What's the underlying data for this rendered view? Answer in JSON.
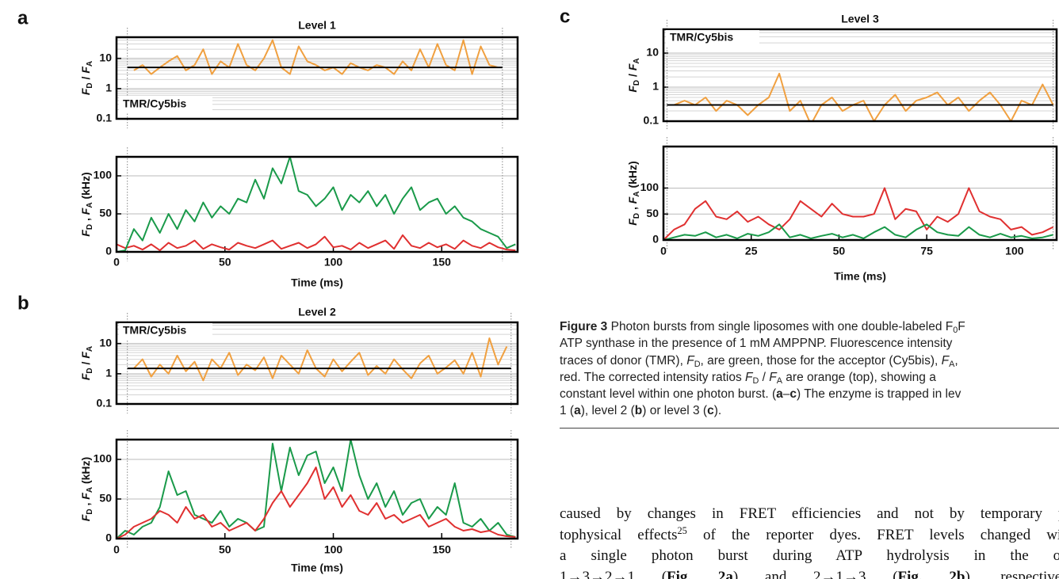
{
  "chart_data": [
    {
      "type": "line",
      "panel": "a",
      "title": "Level 1",
      "log_y": true,
      "xlim": [
        0,
        185
      ],
      "ylim": [
        0.1,
        50
      ],
      "yticks": [
        10,
        1,
        0.1
      ],
      "minor_grid": [
        0.2,
        0.3,
        0.4,
        0.5,
        0.6,
        0.7,
        0.8,
        0.9,
        2,
        3,
        4,
        5,
        6,
        7,
        8,
        9,
        20,
        30,
        40
      ],
      "ylabel": [
        "F",
        "D",
        " / ",
        "F",
        "A"
      ],
      "annotation": "TMR/Cy5bis",
      "annotation_corner": "bottom-left",
      "burst_limits": [
        5,
        178
      ],
      "level": 5,
      "grid": true,
      "x": [
        0,
        4,
        8,
        12,
        16,
        20,
        24,
        28,
        32,
        36,
        40,
        44,
        48,
        52,
        56,
        60,
        64,
        68,
        72,
        76,
        80,
        84,
        88,
        92,
        96,
        100,
        104,
        108,
        112,
        116,
        120,
        124,
        128,
        132,
        136,
        140,
        144,
        148,
        152,
        156,
        160,
        164,
        168,
        172,
        176,
        180,
        184
      ],
      "series": [
        {
          "color": "#f0a040",
          "values": [
            null,
            null,
            4,
            6,
            3,
            5,
            8,
            12,
            4,
            6,
            20,
            3,
            8,
            5,
            30,
            6,
            4,
            10,
            40,
            5,
            3,
            25,
            8,
            6,
            4,
            5,
            3,
            7,
            5,
            4,
            6,
            5,
            3,
            8,
            4,
            20,
            5,
            30,
            6,
            4,
            40,
            3,
            25,
            6,
            5,
            null,
            null
          ]
        }
      ]
    },
    {
      "type": "line",
      "log_y": false,
      "xlim": [
        0,
        185
      ],
      "ylim": [
        0,
        125
      ],
      "yticks": [
        0,
        50,
        100
      ],
      "xticks": [
        0,
        50,
        100,
        150
      ],
      "xlabel": "Time (ms)",
      "ylabel": [
        "F",
        "D",
        " , ",
        "F",
        "A",
        " (kHz)"
      ],
      "burst_limits": [
        5,
        178
      ],
      "grid": true,
      "x": [
        0,
        4,
        8,
        12,
        16,
        20,
        24,
        28,
        32,
        36,
        40,
        44,
        48,
        52,
        56,
        60,
        64,
        68,
        72,
        76,
        80,
        84,
        88,
        92,
        96,
        100,
        104,
        108,
        112,
        116,
        120,
        124,
        128,
        132,
        136,
        140,
        144,
        148,
        152,
        156,
        160,
        164,
        168,
        172,
        176,
        180,
        184
      ],
      "series": [
        {
          "color": "#e03030",
          "values": [
            10,
            5,
            8,
            3,
            10,
            2,
            12,
            5,
            8,
            15,
            4,
            10,
            6,
            3,
            12,
            8,
            5,
            10,
            15,
            4,
            8,
            12,
            5,
            10,
            20,
            6,
            8,
            3,
            12,
            5,
            10,
            15,
            4,
            22,
            8,
            5,
            12,
            6,
            10,
            4,
            15,
            8,
            5,
            12,
            6,
            3,
            2
          ]
        },
        {
          "color": "#1a9a4a",
          "values": [
            0,
            2,
            30,
            15,
            45,
            25,
            50,
            30,
            55,
            40,
            65,
            45,
            60,
            50,
            70,
            65,
            95,
            70,
            110,
            90,
            125,
            80,
            75,
            60,
            70,
            85,
            55,
            75,
            65,
            80,
            60,
            75,
            50,
            70,
            85,
            55,
            65,
            70,
            50,
            60,
            45,
            40,
            30,
            25,
            20,
            5,
            10
          ]
        }
      ]
    },
    {
      "type": "line",
      "panel": "b",
      "title": "Level 2",
      "log_y": true,
      "xlim": [
        0,
        185
      ],
      "ylim": [
        0.1,
        50
      ],
      "yticks": [
        10,
        1,
        0.1
      ],
      "minor_grid": [
        0.2,
        0.3,
        0.4,
        0.5,
        0.6,
        0.7,
        0.8,
        0.9,
        2,
        3,
        4,
        5,
        6,
        7,
        8,
        9,
        20,
        30,
        40
      ],
      "ylabel": [
        "F",
        "D",
        " / ",
        "F",
        "A"
      ],
      "annotation": "TMR/Cy5bis",
      "annotation_corner": "top-left",
      "burst_limits": [
        5,
        182
      ],
      "level": 1.5,
      "grid": true,
      "x": [
        0,
        4,
        8,
        12,
        16,
        20,
        24,
        28,
        32,
        36,
        40,
        44,
        48,
        52,
        56,
        60,
        64,
        68,
        72,
        76,
        80,
        84,
        88,
        92,
        96,
        100,
        104,
        108,
        112,
        116,
        120,
        124,
        128,
        132,
        136,
        140,
        144,
        148,
        152,
        156,
        160,
        164,
        168,
        172,
        176,
        180,
        184
      ],
      "series": [
        {
          "color": "#f0a040",
          "values": [
            null,
            null,
            1.5,
            3,
            0.8,
            2,
            1,
            4,
            1.2,
            2.5,
            0.6,
            3,
            1.5,
            5,
            0.9,
            2,
            1.3,
            3.5,
            0.7,
            4,
            2,
            1,
            6,
            1.5,
            0.8,
            3,
            1.2,
            2.5,
            5,
            0.9,
            1.8,
            1,
            3,
            1.4,
            0.7,
            2.2,
            4,
            1,
            1.6,
            2.8,
            1,
            5,
            0.8,
            15,
            2,
            8,
            null
          ]
        }
      ]
    },
    {
      "type": "line",
      "log_y": false,
      "xlim": [
        0,
        185
      ],
      "ylim": [
        0,
        125
      ],
      "yticks": [
        0,
        50,
        100
      ],
      "xticks": [
        0,
        50,
        100,
        150
      ],
      "xlabel": "Time (ms)",
      "ylabel": [
        "F",
        "D",
        " , ",
        "F",
        "A",
        " (kHz)"
      ],
      "burst_limits": [
        5,
        182
      ],
      "grid": true,
      "x": [
        0,
        4,
        8,
        12,
        16,
        20,
        24,
        28,
        32,
        36,
        40,
        44,
        48,
        52,
        56,
        60,
        64,
        68,
        72,
        76,
        80,
        84,
        88,
        92,
        96,
        100,
        104,
        108,
        112,
        116,
        120,
        124,
        128,
        132,
        136,
        140,
        144,
        148,
        152,
        156,
        160,
        164,
        168,
        172,
        176,
        180,
        184
      ],
      "series": [
        {
          "color": "#1a9a4a",
          "values": [
            0,
            10,
            5,
            15,
            20,
            40,
            85,
            55,
            60,
            30,
            25,
            20,
            35,
            15,
            25,
            20,
            10,
            15,
            120,
            60,
            115,
            80,
            105,
            110,
            70,
            90,
            60,
            125,
            80,
            50,
            70,
            40,
            60,
            30,
            45,
            50,
            25,
            40,
            30,
            70,
            20,
            15,
            25,
            10,
            20,
            5,
            2
          ]
        },
        {
          "color": "#e03030",
          "values": [
            0,
            5,
            15,
            20,
            25,
            35,
            30,
            20,
            40,
            25,
            30,
            15,
            20,
            10,
            15,
            20,
            10,
            25,
            45,
            60,
            40,
            55,
            70,
            90,
            50,
            65,
            40,
            55,
            35,
            30,
            45,
            25,
            30,
            20,
            25,
            30,
            15,
            20,
            25,
            15,
            10,
            12,
            8,
            10,
            5,
            3,
            2
          ]
        }
      ]
    },
    {
      "type": "line",
      "panel": "c",
      "title": "Level 3",
      "log_y": true,
      "xlim": [
        0,
        112
      ],
      "ylim": [
        0.1,
        50
      ],
      "yticks": [
        10,
        1,
        0.1
      ],
      "minor_grid": [
        0.2,
        0.3,
        0.4,
        0.5,
        0.6,
        0.7,
        0.8,
        0.9,
        2,
        3,
        4,
        5,
        6,
        7,
        8,
        9,
        20,
        30,
        40
      ],
      "ylabel": [
        "F",
        "D",
        " / ",
        "F",
        "A"
      ],
      "annotation": "TMR/Cy5bis",
      "annotation_corner": "top-left",
      "burst_limits": [
        1,
        111
      ],
      "level": 0.3,
      "grid": true,
      "x": [
        0,
        3,
        6,
        9,
        12,
        15,
        18,
        21,
        24,
        27,
        30,
        33,
        36,
        39,
        42,
        45,
        48,
        51,
        54,
        57,
        60,
        63,
        66,
        69,
        72,
        75,
        78,
        81,
        84,
        87,
        90,
        93,
        96,
        99,
        102,
        105,
        108,
        111
      ],
      "series": [
        {
          "color": "#f0a040",
          "values": [
            null,
            0.3,
            0.4,
            0.3,
            0.5,
            0.2,
            0.4,
            0.3,
            0.15,
            0.3,
            0.5,
            2.5,
            0.2,
            0.4,
            0.08,
            0.3,
            0.5,
            0.2,
            0.3,
            0.4,
            0.1,
            0.3,
            0.6,
            0.2,
            0.4,
            0.5,
            0.7,
            0.3,
            0.5,
            0.2,
            0.4,
            0.7,
            0.3,
            0.1,
            0.4,
            0.3,
            1.2,
            0.3
          ]
        }
      ]
    },
    {
      "type": "line",
      "log_y": false,
      "xlim": [
        0,
        112
      ],
      "ylim": [
        0,
        180
      ],
      "yticks": [
        0,
        50,
        100
      ],
      "xticks": [
        0,
        25,
        50,
        75,
        100
      ],
      "xlabel": "Time (ms)",
      "ylabel": [
        "F",
        "D",
        " , ",
        "F",
        "A",
        " (kHz)"
      ],
      "burst_limits": [
        1,
        111
      ],
      "grid": true,
      "x": [
        0,
        3,
        6,
        9,
        12,
        15,
        18,
        21,
        24,
        27,
        30,
        33,
        36,
        39,
        42,
        45,
        48,
        51,
        54,
        57,
        60,
        63,
        66,
        69,
        72,
        75,
        78,
        81,
        84,
        87,
        90,
        93,
        96,
        99,
        102,
        105,
        108,
        111
      ],
      "series": [
        {
          "color": "#e03030",
          "values": [
            0,
            20,
            30,
            60,
            75,
            45,
            40,
            55,
            35,
            45,
            30,
            20,
            40,
            75,
            60,
            45,
            70,
            50,
            45,
            45,
            50,
            100,
            40,
            60,
            55,
            20,
            45,
            35,
            50,
            100,
            55,
            45,
            40,
            20,
            25,
            10,
            15,
            25
          ]
        },
        {
          "color": "#1a9a4a",
          "values": [
            0,
            5,
            10,
            8,
            15,
            5,
            10,
            3,
            12,
            8,
            15,
            30,
            5,
            10,
            3,
            8,
            12,
            5,
            10,
            3,
            15,
            25,
            10,
            5,
            20,
            30,
            15,
            10,
            8,
            25,
            10,
            5,
            12,
            5,
            8,
            3,
            5,
            10
          ]
        }
      ]
    }
  ],
  "caption": {
    "label": "Figure 3",
    "lines": [
      [
        " Photon bursts from single liposomes with one double-labeled F",
        "0",
        "F"
      ],
      [
        "ATP synthase in the presence of 1 mM AMPPNP. Fluorescence intensity"
      ],
      [
        "traces of donor (TMR), ",
        "F",
        "D",
        ", are green, those for the acceptor (Cy5bis), ",
        "F",
        "A",
        ","
      ],
      [
        "red. The corrected intensity ratios ",
        "F",
        "D",
        " / ",
        "F",
        "A",
        " are orange (top), showing a"
      ],
      [
        "constant level within one photon burst. (",
        "a",
        "–",
        "c",
        ") The enzyme is trapped in lev"
      ],
      [
        "1 (",
        "a",
        "), level 2 (",
        "b",
        ") or level 3 (",
        "c",
        ")."
      ]
    ]
  },
  "body": {
    "lines": [
      [
        "caused by changes in FRET efficiencies and not by temporary ph"
      ],
      [
        "tophysical effects",
        "25",
        " of the reporter dyes. FRET levels changed with"
      ],
      [
        "a single photon burst during ATP hydrolysis in the ord"
      ],
      [
        "1→3→2→1 (",
        "Fig. 2a",
        ") and 2→1→3 (",
        "Fig. 2b",
        "), respectively"
      ]
    ]
  }
}
